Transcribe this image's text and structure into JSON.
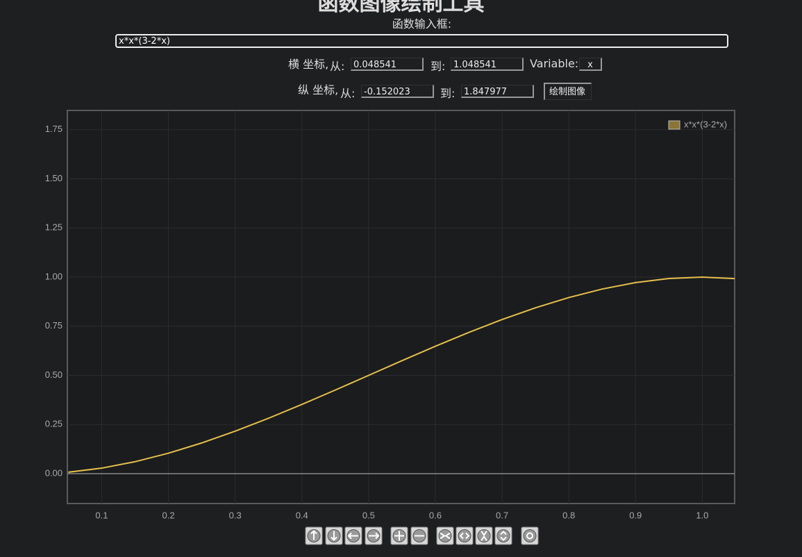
{
  "header": {
    "title": "函数图像绘制工具"
  },
  "form": {
    "function_label": "函数输入框:",
    "function_value": "x*x*(3-2*x)",
    "x_label": "横 坐标,",
    "x_from_label": "从:",
    "x_from": "0.048541",
    "x_to_label": "到:",
    "x_to": "1.048541",
    "variable_label": "Variable:",
    "variable_value": "x",
    "y_label": "纵 坐标,",
    "y_from_label": "从:",
    "y_from": "-0.152023",
    "y_to_label": "到:",
    "y_to": "1.847977",
    "button": "绘制图像"
  },
  "chart_data": {
    "type": "line",
    "x": [
      0.05,
      0.1,
      0.15,
      0.2,
      0.25,
      0.3,
      0.35,
      0.4,
      0.45,
      0.5,
      0.55,
      0.6,
      0.65,
      0.7,
      0.75,
      0.8,
      0.85,
      0.9,
      0.95,
      1.0,
      1.05
    ],
    "series": [
      {
        "name": "x*x*(3-2*x)",
        "color": "#e6c04b",
        "values": [
          0.00725,
          0.028,
          0.06075,
          0.104,
          0.15625,
          0.216,
          0.28175,
          0.352,
          0.42525,
          0.5,
          0.57475,
          0.648,
          0.71825,
          0.784,
          0.84375,
          0.896,
          0.93925,
          0.972,
          0.99275,
          1,
          0.99225
        ]
      }
    ],
    "xlim": [
      0.048541,
      1.048541
    ],
    "ylim": [
      -0.152023,
      1.847977
    ],
    "xticks": [
      0.1,
      0.2,
      0.3,
      0.4,
      0.5,
      0.6,
      0.7,
      0.8,
      0.9,
      {
        "value": 1,
        "label": "1.0"
      }
    ],
    "yticks": [
      {
        "value": 0,
        "label": "0.00"
      },
      {
        "value": 0.25,
        "label": "0.25"
      },
      {
        "value": 0.5,
        "label": "0.50"
      },
      {
        "value": 0.75,
        "label": "0.75"
      },
      {
        "value": 1,
        "label": "1.00"
      },
      {
        "value": 1.25,
        "label": "1.25"
      },
      {
        "value": 1.5,
        "label": "1.50"
      },
      {
        "value": 1.75,
        "label": "1.75"
      }
    ],
    "grid": true,
    "legend": "top-right"
  }
}
